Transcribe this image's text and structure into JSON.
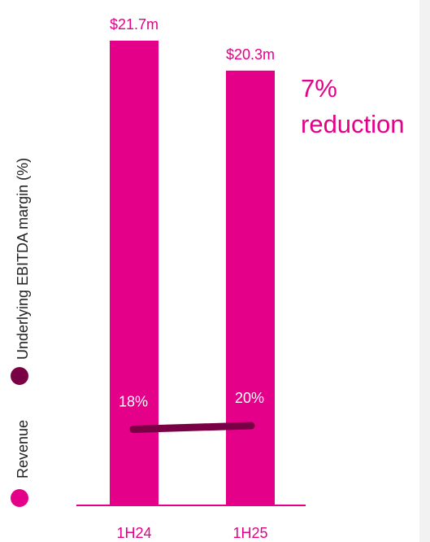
{
  "colors": {
    "revenue": "#e5008a",
    "margin": "#7a0045",
    "axis": "#e5008a",
    "label_dark": "#222222",
    "label_on_bar": "#ffffff"
  },
  "chart_data": {
    "type": "bar",
    "categories": [
      "1H24",
      "1H25"
    ],
    "series": [
      {
        "name": "Revenue",
        "kind": "bar",
        "values": [
          21.7,
          20.3
        ],
        "labels": [
          "$21.7m",
          "$20.3m"
        ]
      },
      {
        "name": "Underlying EBITDA margin (%)",
        "kind": "line",
        "values": [
          18,
          20
        ],
        "labels": [
          "18%",
          "20%"
        ]
      }
    ],
    "annotation": {
      "line1": "7%",
      "line2": "reduction"
    },
    "legend_position": "left",
    "grid": false
  }
}
